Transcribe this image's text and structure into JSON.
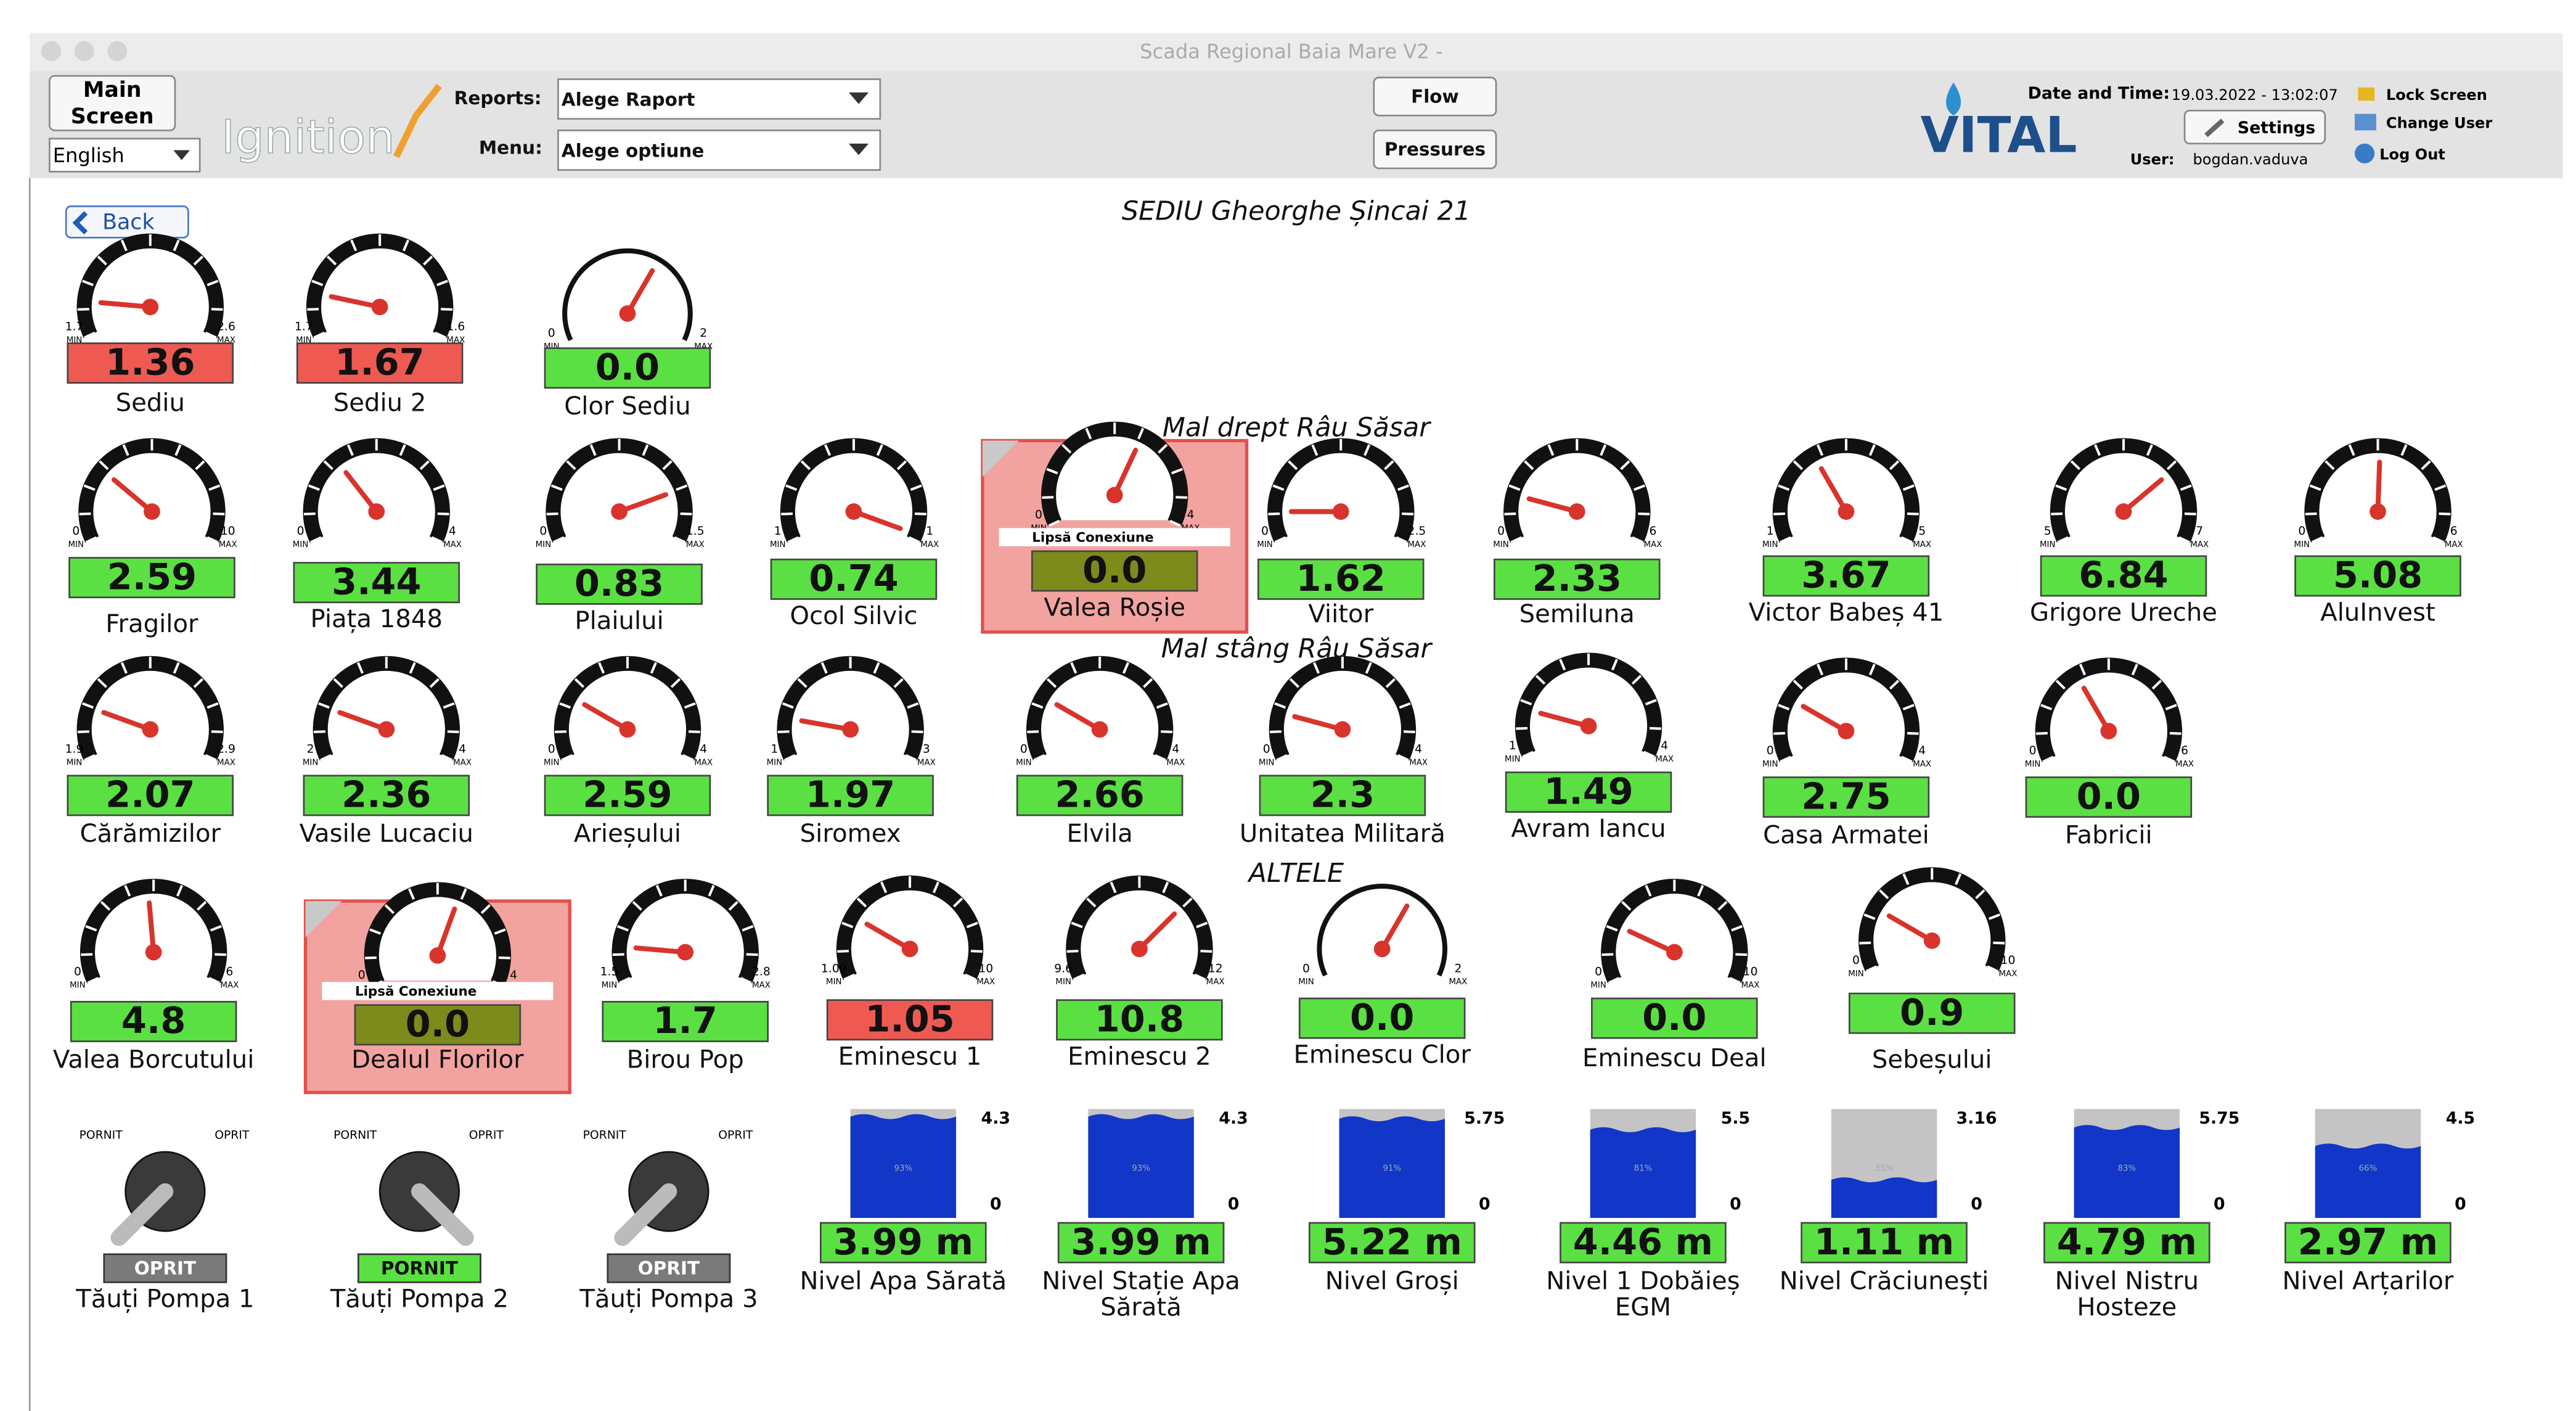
{
  "window_title": "Scada Regional Baia Mare V2 -",
  "toolbar": {
    "main_screen_lines": [
      "Main",
      "Screen"
    ],
    "language": "English",
    "logo": "Ignition",
    "reports_label": "Reports:",
    "reports_value": "Alege Raport",
    "menu_label": "Menu:",
    "menu_value": "Alege optiune",
    "flow": "Flow",
    "pressures": "Pressures",
    "brand": "VITAL",
    "date_label": "Date and Time:",
    "date_value": "19.03.2022 - 13:02:07",
    "settings": "Settings",
    "user_label": "User:",
    "user_value": "bogdan.vaduva",
    "lock_screen": "Lock Screen",
    "change_user": "Change User",
    "log_out": "Log Out"
  },
  "back": "Back",
  "title": "SEDIU Gheorghe Șincai 21",
  "dial_min": "MIN",
  "dial_max": "MAX",
  "no_connection": "Lipsă Conexiune",
  "groups": [
    {
      "gauges": [
        {
          "name": "Sediu",
          "value": "1.36",
          "min": "1.7",
          "max": "2.6",
          "color": "#ee5a52"
        },
        {
          "name": "Sediu 2",
          "value": "1.67",
          "min": "1.7",
          "max": "1.6",
          "color": "#ee5a52"
        },
        {
          "name": "Clor Sediu",
          "value": "0.0",
          "min": "0",
          "max": "2",
          "color": "#5be043"
        }
      ]
    },
    {
      "heading": "Mal drept Râu Săsar",
      "gauges": [
        {
          "name": "Fragilor",
          "value": "2.59",
          "min": "0",
          "max": "10",
          "color": "#5be043"
        },
        {
          "name": "Piața 1848",
          "value": "3.44",
          "min": "0",
          "max": "4",
          "color": "#5be043"
        },
        {
          "name": "Plaiului",
          "value": "0.83",
          "min": "0",
          "max": "1.5",
          "color": "#5be043"
        },
        {
          "name": "Ocol Silvic",
          "value": "0.74",
          "min": "1",
          "max": "1",
          "color": "#5be043"
        },
        {
          "name": "Valea Roșie",
          "value": "0.0",
          "min": "0",
          "max": "4",
          "color": "#7d8a1c",
          "offline": true
        },
        {
          "name": "Viitor",
          "value": "1.62",
          "min": "0",
          "max": "2.5",
          "color": "#5be043"
        },
        {
          "name": "Semiluna",
          "value": "2.33",
          "min": "0",
          "max": "6",
          "color": "#5be043"
        },
        {
          "name": "Victor Babeș 41",
          "value": "3.67",
          "min": "1",
          "max": "5",
          "color": "#5be043"
        },
        {
          "name": "Grigore Ureche",
          "value": "6.84",
          "min": "5",
          "max": "7",
          "color": "#5be043"
        },
        {
          "name": "AluInvest",
          "value": "5.08",
          "min": "0",
          "max": "6",
          "color": "#5be043"
        }
      ]
    },
    {
      "heading": "Mal stâng Râu Săsar",
      "gauges": [
        {
          "name": "Cărămizilor",
          "value": "2.07",
          "min": "1.9",
          "max": "2.9",
          "color": "#5be043"
        },
        {
          "name": "Vasile Lucaciu",
          "value": "2.36",
          "min": "2",
          "max": "4",
          "color": "#5be043"
        },
        {
          "name": "Arieșului",
          "value": "2.59",
          "min": "0",
          "max": "4",
          "color": "#5be043"
        },
        {
          "name": "Siromex",
          "value": "1.97",
          "min": "1",
          "max": "3",
          "color": "#5be043"
        },
        {
          "name": "Elvila",
          "value": "2.66",
          "min": "0",
          "max": "4",
          "color": "#5be043"
        },
        {
          "name": "Unitatea Militară",
          "value": "2.3",
          "min": "0",
          "max": "4",
          "color": "#5be043"
        },
        {
          "name": "Avram Iancu",
          "value": "1.49",
          "min": "1",
          "max": "4",
          "color": "#5be043"
        },
        {
          "name": "Casa Armatei",
          "value": "2.75",
          "min": "0",
          "max": "4",
          "color": "#5be043"
        },
        {
          "name": "Fabricii",
          "value": "0.0",
          "min": "0",
          "max": "6",
          "color": "#5be043"
        }
      ]
    },
    {
      "heading": "ALTELE",
      "gauges": [
        {
          "name": "Valea Borcutului",
          "value": "4.8",
          "min": "0",
          "max": "6",
          "color": "#5be043"
        },
        {
          "name": "Dealul Florilor",
          "value": "0.0",
          "min": "0",
          "max": "4",
          "color": "#7d8a1c",
          "offline": true
        },
        {
          "name": "Birou Pop",
          "value": "1.7",
          "min": "1.5",
          "max": "2.8",
          "color": "#5be043"
        },
        {
          "name": "Eminescu 1",
          "value": "1.05",
          "min": "1.09",
          "max": "10",
          "color": "#ee5a52"
        },
        {
          "name": "Eminescu 2",
          "value": "10.8",
          "min": "9.6",
          "max": "12",
          "color": "#5be043"
        },
        {
          "name": "Eminescu Clor",
          "value": "0.0",
          "min": "0",
          "max": "2",
          "color": "#5be043"
        },
        {
          "name": "Eminescu Deal",
          "value": "0.0",
          "min": "0",
          "max": "10",
          "color": "#5be043"
        },
        {
          "name": "Sebeșului",
          "value": "0.9",
          "min": "0",
          "max": "10",
          "color": "#5be043"
        }
      ]
    }
  ],
  "pumps": {
    "on_label": "PORNIT",
    "off_label": "OPRIT",
    "items": [
      {
        "name": "Tăuți Pompa 1",
        "status": "OPRIT",
        "color": "#7a7a7a"
      },
      {
        "name": "Tăuți Pompa 2",
        "status": "PORNIT",
        "color": "#5be043"
      },
      {
        "name": "Tăuți Pompa 3",
        "status": "OPRIT",
        "color": "#7a7a7a"
      }
    ]
  },
  "tanks": [
    {
      "name_lines": [
        "Nivel Apa Sărată"
      ],
      "value": "3.99 m",
      "max": "4.3",
      "min": "0",
      "percent": "93%"
    },
    {
      "name_lines": [
        "Nivel Stație Apa",
        "Sărată"
      ],
      "value": "3.99 m",
      "max": "4.3",
      "min": "0",
      "percent": "93%"
    },
    {
      "name_lines": [
        "Nivel Groși"
      ],
      "value": "5.22 m",
      "max": "5.75",
      "min": "0",
      "percent": "91%"
    },
    {
      "name_lines": [
        "Nivel 1 Dobăieș",
        "EGM"
      ],
      "value": "4.46 m",
      "max": "5.5",
      "min": "0",
      "percent": "81%"
    },
    {
      "name_lines": [
        "Nivel Crăciunești"
      ],
      "value": "1.11 m",
      "max": "3.16",
      "min": "0",
      "percent": "35%"
    },
    {
      "name_lines": [
        "Nivel Nistru",
        "Hosteze"
      ],
      "value": "4.79 m",
      "max": "5.75",
      "min": "0",
      "percent": "83%"
    },
    {
      "name_lines": [
        "Nivel Arțarilor"
      ],
      "value": "2.97 m",
      "max": "4.5",
      "min": "0",
      "percent": "66%"
    }
  ]
}
